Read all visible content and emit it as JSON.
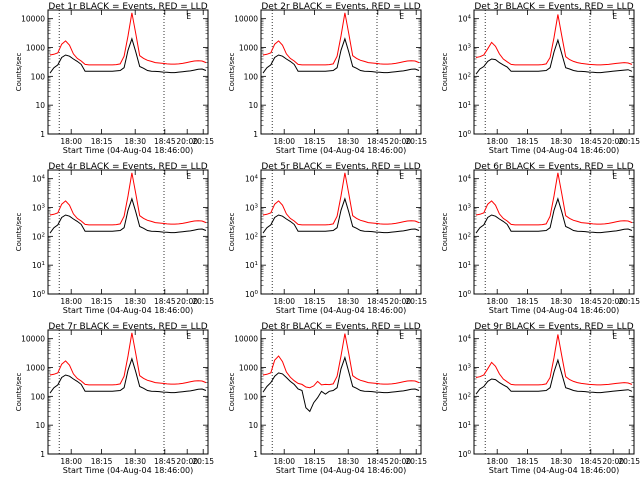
{
  "common": {
    "xlabel": "Start Time (04-Aug-04 18:46:00)",
    "ylabel": "Counts/sec",
    "x_ticks": [
      "18:00",
      "18:15",
      "18:30",
      "18:45",
      "20:00",
      "20:15"
    ],
    "y_tick_labels_linear": [
      "1",
      "10",
      "100",
      "1000",
      "10000"
    ],
    "y_tick_labels_exp": [
      "10^0",
      "10^1",
      "10^2",
      "10^3",
      "10^4"
    ],
    "marker": "E",
    "colors": {
      "events": "#000000",
      "lld": "#ff0000"
    }
  },
  "chart_data": [
    {
      "type": "line",
      "title": "Det 1r BLACK = Events, RED = LLD",
      "ytick_style": "linear",
      "series": [
        {
          "name": "Events",
          "color": "#000000",
          "y": [
            130,
            200,
            250,
            450,
            550,
            500,
            400,
            330,
            260,
            150,
            150,
            150,
            150,
            150,
            150,
            150,
            150,
            155,
            160,
            200,
            800,
            2000,
            700,
            220,
            190,
            160,
            150,
            148,
            146,
            140,
            138,
            135,
            135,
            140,
            145,
            150,
            155,
            165,
            175,
            180,
            160
          ]
        },
        {
          "name": "LLD",
          "color": "#ff0000",
          "y": [
            550,
            580,
            650,
            1300,
            1700,
            1200,
            600,
            420,
            340,
            260,
            250,
            250,
            250,
            250,
            250,
            250,
            250,
            255,
            270,
            500,
            2500,
            16000,
            3000,
            520,
            420,
            360,
            330,
            300,
            290,
            280,
            270,
            265,
            265,
            270,
            280,
            300,
            320,
            340,
            350,
            340,
            300
          ]
        }
      ]
    },
    {
      "type": "line",
      "title": "Det 2r BLACK = Events, RED = LLD",
      "ytick_style": "linear",
      "series": [
        {
          "name": "Events",
          "color": "#000000",
          "y": [
            130,
            200,
            250,
            450,
            550,
            500,
            400,
            330,
            260,
            150,
            150,
            150,
            150,
            150,
            150,
            150,
            150,
            155,
            160,
            200,
            800,
            2000,
            700,
            220,
            190,
            160,
            150,
            148,
            146,
            140,
            138,
            135,
            135,
            140,
            145,
            150,
            155,
            165,
            175,
            180,
            160
          ]
        },
        {
          "name": "LLD",
          "color": "#ff0000",
          "y": [
            550,
            580,
            650,
            1300,
            1700,
            1200,
            600,
            420,
            340,
            260,
            250,
            250,
            250,
            250,
            250,
            250,
            250,
            255,
            270,
            500,
            2500,
            16000,
            3000,
            520,
            420,
            360,
            330,
            300,
            290,
            280,
            270,
            265,
            265,
            270,
            280,
            300,
            320,
            340,
            350,
            340,
            300
          ]
        }
      ]
    },
    {
      "type": "line",
      "title": "Det 3r BLACK = Events, RED = LLD",
      "ytick_style": "exp",
      "series": [
        {
          "name": "Events",
          "color": "#000000",
          "y": [
            120,
            180,
            220,
            330,
            400,
            380,
            300,
            250,
            210,
            150,
            150,
            150,
            150,
            150,
            150,
            150,
            150,
            155,
            160,
            200,
            700,
            1800,
            600,
            200,
            180,
            160,
            150,
            148,
            146,
            140,
            138,
            135,
            135,
            140,
            145,
            150,
            155,
            160,
            165,
            170,
            150
          ]
        },
        {
          "name": "LLD",
          "color": "#ff0000",
          "y": [
            450,
            480,
            550,
            900,
            1500,
            1100,
            600,
            400,
            320,
            260,
            250,
            250,
            250,
            250,
            250,
            250,
            250,
            255,
            270,
            450,
            2200,
            14000,
            2500,
            480,
            380,
            330,
            300,
            280,
            270,
            260,
            255,
            250,
            250,
            255,
            260,
            270,
            280,
            290,
            300,
            290,
            260
          ]
        }
      ]
    },
    {
      "type": "line",
      "title": "Det 4r BLACK = Events, RED = LLD",
      "ytick_style": "exp",
      "series": [
        {
          "name": "Events",
          "color": "#000000",
          "y": [
            130,
            200,
            250,
            450,
            550,
            500,
            400,
            330,
            260,
            150,
            150,
            150,
            150,
            150,
            150,
            150,
            150,
            155,
            160,
            200,
            800,
            2000,
            700,
            220,
            190,
            160,
            150,
            148,
            146,
            140,
            138,
            135,
            135,
            140,
            145,
            150,
            155,
            165,
            175,
            180,
            160
          ]
        },
        {
          "name": "LLD",
          "color": "#ff0000",
          "y": [
            550,
            580,
            650,
            1300,
            1700,
            1200,
            600,
            420,
            340,
            260,
            250,
            250,
            250,
            250,
            250,
            250,
            250,
            255,
            270,
            500,
            2500,
            16000,
            3000,
            520,
            420,
            360,
            330,
            300,
            290,
            280,
            270,
            265,
            265,
            270,
            280,
            300,
            320,
            340,
            350,
            340,
            300
          ]
        }
      ]
    },
    {
      "type": "line",
      "title": "Det 5r BLACK = Events, RED = LLD",
      "ytick_style": "exp",
      "series": [
        {
          "name": "Events",
          "color": "#000000",
          "y": [
            130,
            200,
            250,
            450,
            550,
            500,
            400,
            330,
            260,
            150,
            150,
            150,
            150,
            150,
            150,
            150,
            150,
            155,
            160,
            200,
            800,
            2000,
            700,
            220,
            190,
            160,
            150,
            148,
            146,
            140,
            138,
            135,
            135,
            140,
            145,
            150,
            155,
            165,
            175,
            180,
            160
          ]
        },
        {
          "name": "LLD",
          "color": "#ff0000",
          "y": [
            550,
            580,
            650,
            1300,
            1700,
            1200,
            600,
            420,
            340,
            260,
            250,
            250,
            250,
            250,
            250,
            250,
            250,
            255,
            270,
            500,
            2500,
            16000,
            3000,
            520,
            420,
            360,
            330,
            300,
            290,
            280,
            270,
            265,
            265,
            270,
            280,
            300,
            320,
            340,
            350,
            340,
            300
          ]
        }
      ]
    },
    {
      "type": "line",
      "title": "Det 6r BLACK = Events, RED = LLD",
      "ytick_style": "exp",
      "series": [
        {
          "name": "Events",
          "color": "#000000",
          "y": [
            130,
            200,
            250,
            450,
            550,
            500,
            400,
            330,
            260,
            150,
            150,
            150,
            150,
            150,
            150,
            150,
            150,
            155,
            160,
            200,
            800,
            2000,
            700,
            220,
            190,
            160,
            150,
            148,
            146,
            140,
            138,
            135,
            135,
            140,
            145,
            150,
            155,
            165,
            175,
            180,
            160
          ]
        },
        {
          "name": "LLD",
          "color": "#ff0000",
          "y": [
            550,
            580,
            650,
            1300,
            1700,
            1200,
            600,
            420,
            340,
            260,
            250,
            250,
            250,
            250,
            250,
            250,
            250,
            255,
            270,
            500,
            2500,
            16000,
            3000,
            520,
            420,
            360,
            330,
            300,
            290,
            280,
            270,
            265,
            265,
            270,
            280,
            300,
            320,
            340,
            350,
            340,
            300
          ]
        }
      ]
    },
    {
      "type": "line",
      "title": "Det 7r BLACK = Events, RED = LLD",
      "ytick_style": "linear",
      "series": [
        {
          "name": "Events",
          "color": "#000000",
          "y": [
            130,
            200,
            250,
            450,
            550,
            500,
            400,
            330,
            260,
            150,
            150,
            150,
            150,
            150,
            150,
            150,
            150,
            155,
            160,
            200,
            800,
            2000,
            700,
            220,
            190,
            160,
            150,
            148,
            146,
            140,
            138,
            135,
            135,
            140,
            145,
            150,
            155,
            165,
            175,
            180,
            160
          ]
        },
        {
          "name": "LLD",
          "color": "#ff0000",
          "y": [
            550,
            580,
            650,
            1300,
            1700,
            1200,
            600,
            420,
            340,
            260,
            250,
            250,
            250,
            250,
            250,
            250,
            250,
            255,
            270,
            500,
            2500,
            16000,
            3000,
            520,
            420,
            360,
            330,
            300,
            290,
            280,
            270,
            265,
            265,
            270,
            280,
            300,
            320,
            340,
            350,
            340,
            300
          ]
        }
      ]
    },
    {
      "type": "line",
      "title": "Det 8r BLACK = Events, RED = LLD",
      "ytick_style": "linear",
      "series": [
        {
          "name": "Events",
          "color": "#000000",
          "y": [
            140,
            220,
            300,
            500,
            650,
            600,
            450,
            330,
            260,
            180,
            160,
            40,
            30,
            60,
            90,
            150,
            120,
            150,
            160,
            200,
            900,
            2200,
            700,
            220,
            190,
            160,
            150,
            148,
            146,
            140,
            138,
            135,
            135,
            140,
            145,
            150,
            155,
            165,
            175,
            180,
            160
          ]
        },
        {
          "name": "LLD",
          "color": "#ff0000",
          "y": [
            550,
            580,
            650,
            1800,
            2500,
            1600,
            700,
            460,
            350,
            280,
            260,
            210,
            200,
            230,
            330,
            250,
            260,
            255,
            270,
            500,
            2500,
            15000,
            3000,
            520,
            420,
            360,
            330,
            300,
            290,
            280,
            270,
            265,
            265,
            270,
            280,
            300,
            320,
            340,
            350,
            340,
            300
          ]
        }
      ]
    },
    {
      "type": "line",
      "title": "Det 9r BLACK = Events, RED = LLD",
      "ytick_style": "exp",
      "series": [
        {
          "name": "Events",
          "color": "#000000",
          "y": [
            120,
            180,
            220,
            330,
            400,
            380,
            300,
            250,
            210,
            150,
            150,
            150,
            150,
            150,
            150,
            150,
            150,
            155,
            160,
            200,
            700,
            1800,
            600,
            200,
            180,
            160,
            150,
            148,
            146,
            140,
            138,
            135,
            135,
            140,
            145,
            150,
            155,
            160,
            165,
            170,
            150
          ]
        },
        {
          "name": "LLD",
          "color": "#ff0000",
          "y": [
            450,
            480,
            550,
            900,
            1500,
            1100,
            600,
            400,
            320,
            260,
            250,
            250,
            250,
            250,
            250,
            250,
            250,
            255,
            270,
            450,
            2200,
            14000,
            2500,
            480,
            380,
            330,
            300,
            280,
            270,
            260,
            255,
            250,
            250,
            255,
            260,
            270,
            280,
            290,
            300,
            290,
            260
          ]
        }
      ]
    }
  ]
}
